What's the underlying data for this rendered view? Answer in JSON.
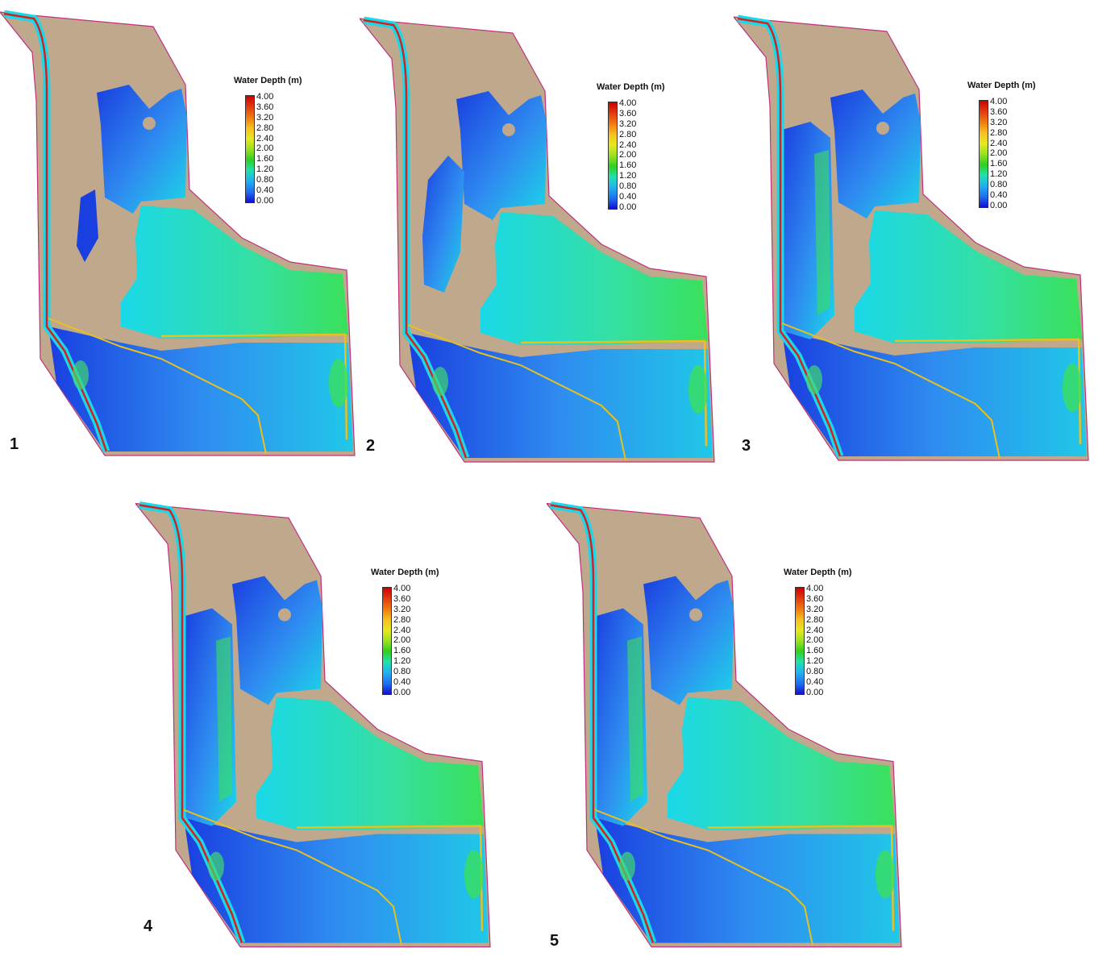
{
  "legend": {
    "title": "Water Depth (m)",
    "ticks": [
      "4.00",
      "3.60",
      "3.20",
      "2.80",
      "2.40",
      "2.00",
      "1.60",
      "1.20",
      "0.80",
      "0.40",
      "0.00"
    ],
    "colors": [
      "#cc0000",
      "#e23a10",
      "#f07a10",
      "#f5c020",
      "#e8e820",
      "#9be020",
      "#30d020",
      "#20e0b0",
      "#20b0f0",
      "#2070f0",
      "#1010d0"
    ]
  },
  "colors": {
    "land": "#bfa88c",
    "boundary": "#c0307f",
    "deep_blue": "#1a3fe0",
    "mid_blue": "#2f8cf0",
    "cyan": "#1ad8e8",
    "green": "#3ae05a",
    "channel_red": "#d42020",
    "channel_yellow": "#e8c020"
  },
  "panels": [
    {
      "number": "1",
      "scenario": 1
    },
    {
      "number": "2",
      "scenario": 2
    },
    {
      "number": "3",
      "scenario": 3
    },
    {
      "number": "4",
      "scenario": 4
    },
    {
      "number": "5",
      "scenario": 5
    }
  ]
}
